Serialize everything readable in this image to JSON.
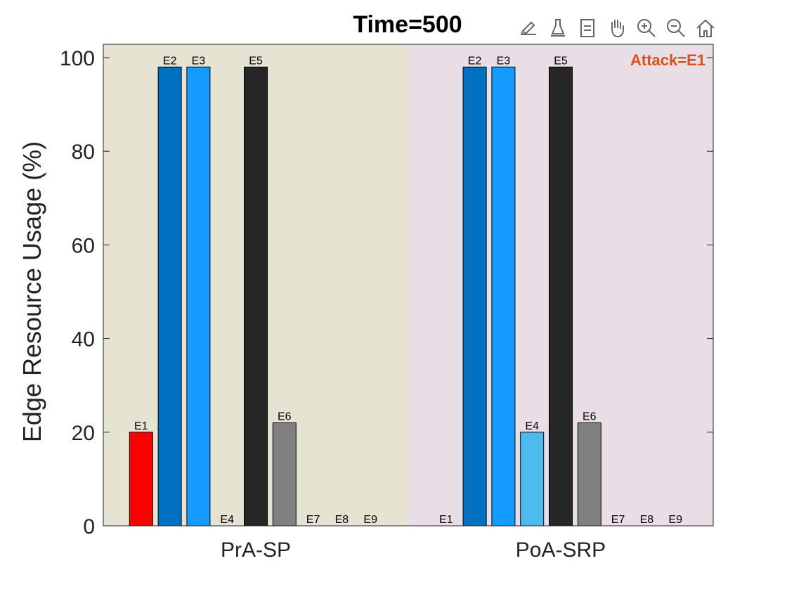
{
  "chart_data": {
    "type": "bar",
    "title": "Time=500",
    "annotation": "Attack=E1",
    "ylabel": "Edge Resource Usage (%)",
    "xlabel": "",
    "ylim": [
      0,
      100
    ],
    "yticks": [
      0,
      20,
      40,
      60,
      80,
      100
    ],
    "grid": false,
    "groups": [
      {
        "name": "PrA-SP",
        "background": "#e6e3d3",
        "bars": [
          {
            "label": "E1",
            "value": 20,
            "color": "#ff0000"
          },
          {
            "label": "E2",
            "value": 98,
            "color": "#0070c0"
          },
          {
            "label": "E3",
            "value": 98,
            "color": "#149bff"
          },
          {
            "label": "E4",
            "value": 0,
            "color": "#4dbbee"
          },
          {
            "label": "E5",
            "value": 98,
            "color": "#262626"
          },
          {
            "label": "E6",
            "value": 22,
            "color": "#808080"
          },
          {
            "label": "E7",
            "value": 0,
            "color": "#808080"
          },
          {
            "label": "E8",
            "value": 0,
            "color": "#808080"
          },
          {
            "label": "E9",
            "value": 0,
            "color": "#808080"
          }
        ]
      },
      {
        "name": "PoA-SRP",
        "background": "#e9dee6",
        "bars": [
          {
            "label": "E1",
            "value": 0,
            "color": "#ff0000"
          },
          {
            "label": "E2",
            "value": 98,
            "color": "#0070c0"
          },
          {
            "label": "E3",
            "value": 98,
            "color": "#149bff"
          },
          {
            "label": "E4",
            "value": 20,
            "color": "#4dbbee"
          },
          {
            "label": "E5",
            "value": 98,
            "color": "#262626"
          },
          {
            "label": "E6",
            "value": 22,
            "color": "#808080"
          },
          {
            "label": "E7",
            "value": 0,
            "color": "#808080"
          },
          {
            "label": "E8",
            "value": 0,
            "color": "#808080"
          },
          {
            "label": "E9",
            "value": 0,
            "color": "#808080"
          }
        ]
      }
    ],
    "annotation_color": "#d95319"
  },
  "toolbar": {
    "icons": [
      "brush-edit-icon",
      "data-tip-icon",
      "legend-icon",
      "pan-hand-icon",
      "zoom-in-icon",
      "zoom-out-icon",
      "home-icon"
    ]
  }
}
